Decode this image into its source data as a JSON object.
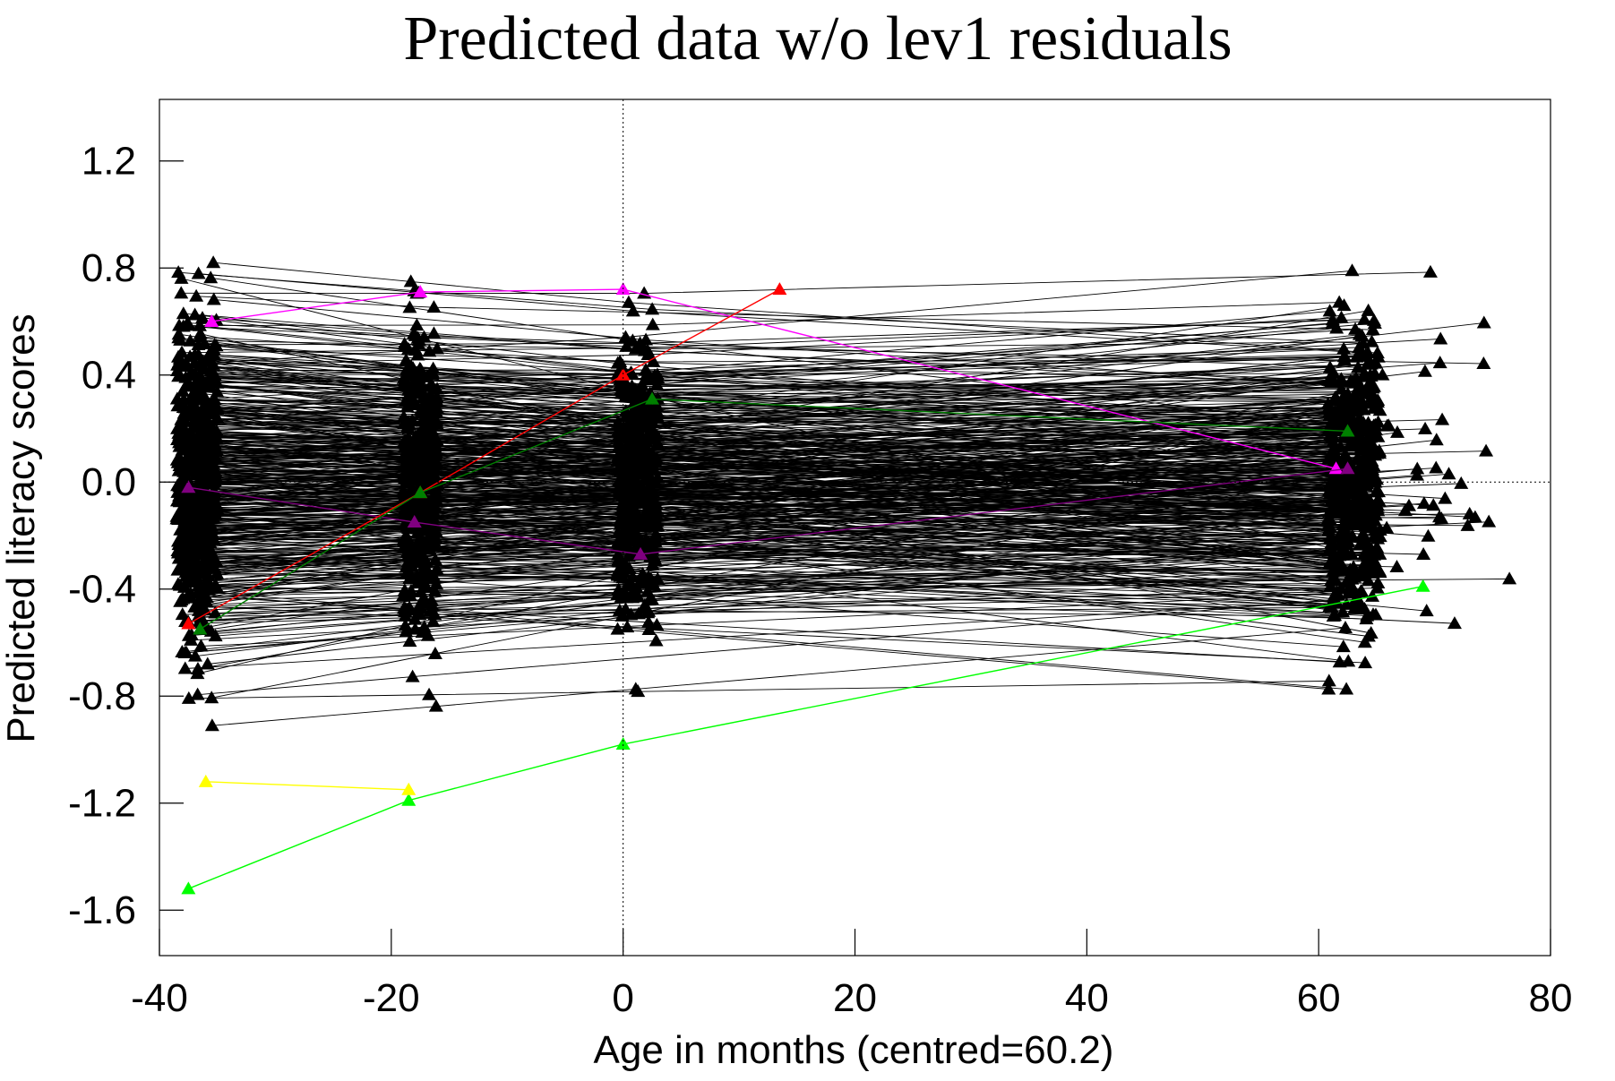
{
  "chart_data": {
    "type": "line",
    "title": "Predicted data w/o lev1 residuals",
    "xlabel": "Age in months (centred=60.2)",
    "ylabel": "Predicted literacy scores",
    "xlim": [
      -40,
      80
    ],
    "ylim": [
      -1.77,
      1.43
    ],
    "xticks": [
      -40,
      -20,
      0,
      20,
      40,
      60,
      80
    ],
    "yticks": [
      -1.6,
      -1.2,
      -0.8,
      -0.4,
      0.0,
      0.4,
      0.8,
      1.2
    ],
    "ytick_labels": [
      "-1.6",
      "-1.2",
      "-0.8",
      "-0.4",
      "0.0",
      "0.4",
      "0.8",
      "1.2"
    ],
    "reference_lines": {
      "x": 0,
      "y": 0,
      "style": "dotted"
    },
    "grid": false,
    "marker": "triangle",
    "highlighted_series": [
      {
        "color": "#ff00ff",
        "x": [
          -35.5,
          -17.5,
          0,
          61.5
        ],
        "y": [
          0.6,
          0.71,
          0.72,
          0.05
        ]
      },
      {
        "color": "#800080",
        "x": [
          -37.5,
          -18,
          1.5,
          62.5
        ],
        "y": [
          -0.02,
          -0.15,
          -0.27,
          0.05
        ]
      },
      {
        "color": "#ff0000",
        "x": [
          -37.5,
          -17.5,
          0,
          13.5
        ],
        "y": [
          -0.53,
          -0.04,
          0.4,
          0.72
        ]
      },
      {
        "color": "#008000",
        "x": [
          -36.5,
          -17.5,
          2.5,
          62.5
        ],
        "y": [
          -0.55,
          -0.04,
          0.31,
          0.19
        ]
      },
      {
        "color": "#00ff00",
        "x": [
          -37.5,
          -18.5,
          0,
          69
        ],
        "y": [
          -1.52,
          -1.19,
          -0.98,
          -0.39
        ]
      },
      {
        "color": "#ffff00",
        "x": [
          -36,
          -18.5
        ],
        "y": [
          -1.12,
          -1.15
        ]
      }
    ],
    "series_color": "#000000",
    "n_background_series": 520
  }
}
